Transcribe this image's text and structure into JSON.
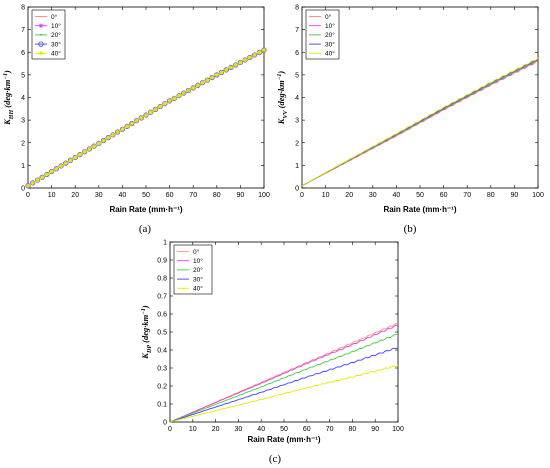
{
  "chart_data": [
    {
      "type": "line",
      "panel_label": "(a)",
      "ylabel": "K_HH (deg·km⁻¹)",
      "ylabel_main": "K",
      "ylabel_sub": "HH",
      "ylabel_units": "(deg·km",
      "ylabel_exp": "−1",
      "ylabel_close": ")",
      "xlabel": "Rain Rate (mm·h⁻¹)",
      "xlim": [
        0,
        100
      ],
      "ylim": [
        0,
        8
      ],
      "xticks": [
        "0",
        "10",
        "20",
        "30",
        "40",
        "50",
        "60",
        "70",
        "80",
        "90",
        "100"
      ],
      "yticks": [
        "0",
        "1",
        "2",
        "3",
        "4",
        "5",
        "6",
        "7",
        "8"
      ],
      "legend": "top-left",
      "series": [
        {
          "name": "0°",
          "color": "#ff8080",
          "marker": "line",
          "x": [
            0,
            20,
            40,
            60,
            80,
            100
          ],
          "values": [
            0.1,
            1.35,
            2.6,
            3.85,
            5.0,
            6.1
          ]
        },
        {
          "name": "10°",
          "color": "#e040e0",
          "marker": "star",
          "x": [
            0,
            20,
            40,
            60,
            80,
            100
          ],
          "values": [
            0.1,
            1.35,
            2.6,
            3.85,
            5.0,
            6.1
          ]
        },
        {
          "name": "20°",
          "color": "#40c040",
          "marker": "dot",
          "x": [
            0,
            20,
            40,
            60,
            80,
            100
          ],
          "values": [
            0.1,
            1.35,
            2.6,
            3.85,
            5.0,
            6.1
          ]
        },
        {
          "name": "30°",
          "color": "#4040ff",
          "marker": "circle",
          "x": [
            0,
            20,
            40,
            60,
            80,
            100
          ],
          "values": [
            0.1,
            1.35,
            2.6,
            3.85,
            5.0,
            6.1
          ]
        },
        {
          "name": "40°",
          "color": "#e8e800",
          "marker": "asterisk",
          "x": [
            0,
            20,
            40,
            60,
            80,
            100
          ],
          "values": [
            0.1,
            1.35,
            2.6,
            3.85,
            5.0,
            6.1
          ]
        }
      ]
    },
    {
      "type": "line",
      "panel_label": "(b)",
      "ylabel": "K_VV (deg·km⁻¹)",
      "ylabel_main": "K",
      "ylabel_sub": "VV",
      "ylabel_units": "(deg·km",
      "ylabel_exp": "−1",
      "ylabel_close": ")",
      "xlabel": "Rain Rate (mm·h⁻¹)",
      "xlim": [
        0,
        100
      ],
      "ylim": [
        0,
        8
      ],
      "xticks": [
        "0",
        "10",
        "20",
        "30",
        "40",
        "50",
        "60",
        "70",
        "80",
        "90",
        "100"
      ],
      "yticks": [
        "0",
        "1",
        "2",
        "3",
        "4",
        "5",
        "6",
        "7",
        "8"
      ],
      "legend": "top-left",
      "series": [
        {
          "name": "0°",
          "color": "#ff8080",
          "x": [
            0,
            20,
            40,
            60,
            80,
            100
          ],
          "values": [
            0.1,
            1.2,
            2.3,
            3.45,
            4.55,
            5.6
          ]
        },
        {
          "name": "10°",
          "color": "#e040e0",
          "x": [
            0,
            20,
            40,
            60,
            80,
            100
          ],
          "values": [
            0.1,
            1.22,
            2.33,
            3.48,
            4.58,
            5.63
          ]
        },
        {
          "name": "20°",
          "color": "#40c040",
          "x": [
            0,
            20,
            40,
            60,
            80,
            100
          ],
          "values": [
            0.1,
            1.23,
            2.35,
            3.5,
            4.6,
            5.66
          ]
        },
        {
          "name": "30°",
          "color": "#4040ff",
          "x": [
            0,
            20,
            40,
            60,
            80,
            100
          ],
          "values": [
            0.1,
            1.25,
            2.38,
            3.53,
            4.64,
            5.7
          ]
        },
        {
          "name": "40°",
          "color": "#e8e800",
          "x": [
            0,
            20,
            40,
            60,
            80,
            100
          ],
          "values": [
            0.1,
            1.26,
            2.4,
            3.56,
            4.67,
            5.73
          ]
        }
      ]
    },
    {
      "type": "line",
      "panel_label": "(c)",
      "ylabel": "K_DP (deg·km⁻¹)",
      "ylabel_main": "K",
      "ylabel_sub": "DP",
      "ylabel_units": "(deg·km",
      "ylabel_exp": "−1",
      "ylabel_close": ")",
      "xlabel": "Rain Rate (mm·h⁻¹)",
      "xlim": [
        0,
        100
      ],
      "ylim": [
        0,
        1
      ],
      "xticks": [
        "0",
        "10",
        "20",
        "30",
        "40",
        "50",
        "60",
        "70",
        "80",
        "90",
        "100"
      ],
      "yticks": [
        "0",
        "0.1",
        "0.2",
        "0.3",
        "0.4",
        "0.5",
        "0.6",
        "0.7",
        "0.8",
        "0.9",
        "1"
      ],
      "legend": "top-left",
      "series": [
        {
          "name": "0°",
          "color": "#ff9090",
          "x": [
            0,
            20,
            40,
            60,
            80,
            100
          ],
          "values": [
            0,
            0.11,
            0.22,
            0.33,
            0.44,
            0.55
          ]
        },
        {
          "name": "10°",
          "color": "#e040e0",
          "x": [
            0,
            20,
            40,
            60,
            80,
            100
          ],
          "values": [
            0,
            0.108,
            0.215,
            0.325,
            0.43,
            0.54
          ]
        },
        {
          "name": "20°",
          "color": "#40d040",
          "x": [
            0,
            20,
            40,
            60,
            80,
            100
          ],
          "values": [
            0,
            0.098,
            0.195,
            0.295,
            0.39,
            0.49
          ]
        },
        {
          "name": "30°",
          "color": "#4040ff",
          "x": [
            0,
            20,
            40,
            60,
            80,
            100
          ],
          "values": [
            0,
            0.083,
            0.165,
            0.25,
            0.33,
            0.415
          ]
        },
        {
          "name": "40°",
          "color": "#e8e800",
          "x": [
            0,
            20,
            40,
            60,
            80,
            100
          ],
          "values": [
            0,
            0.063,
            0.125,
            0.19,
            0.25,
            0.315
          ]
        }
      ]
    }
  ]
}
